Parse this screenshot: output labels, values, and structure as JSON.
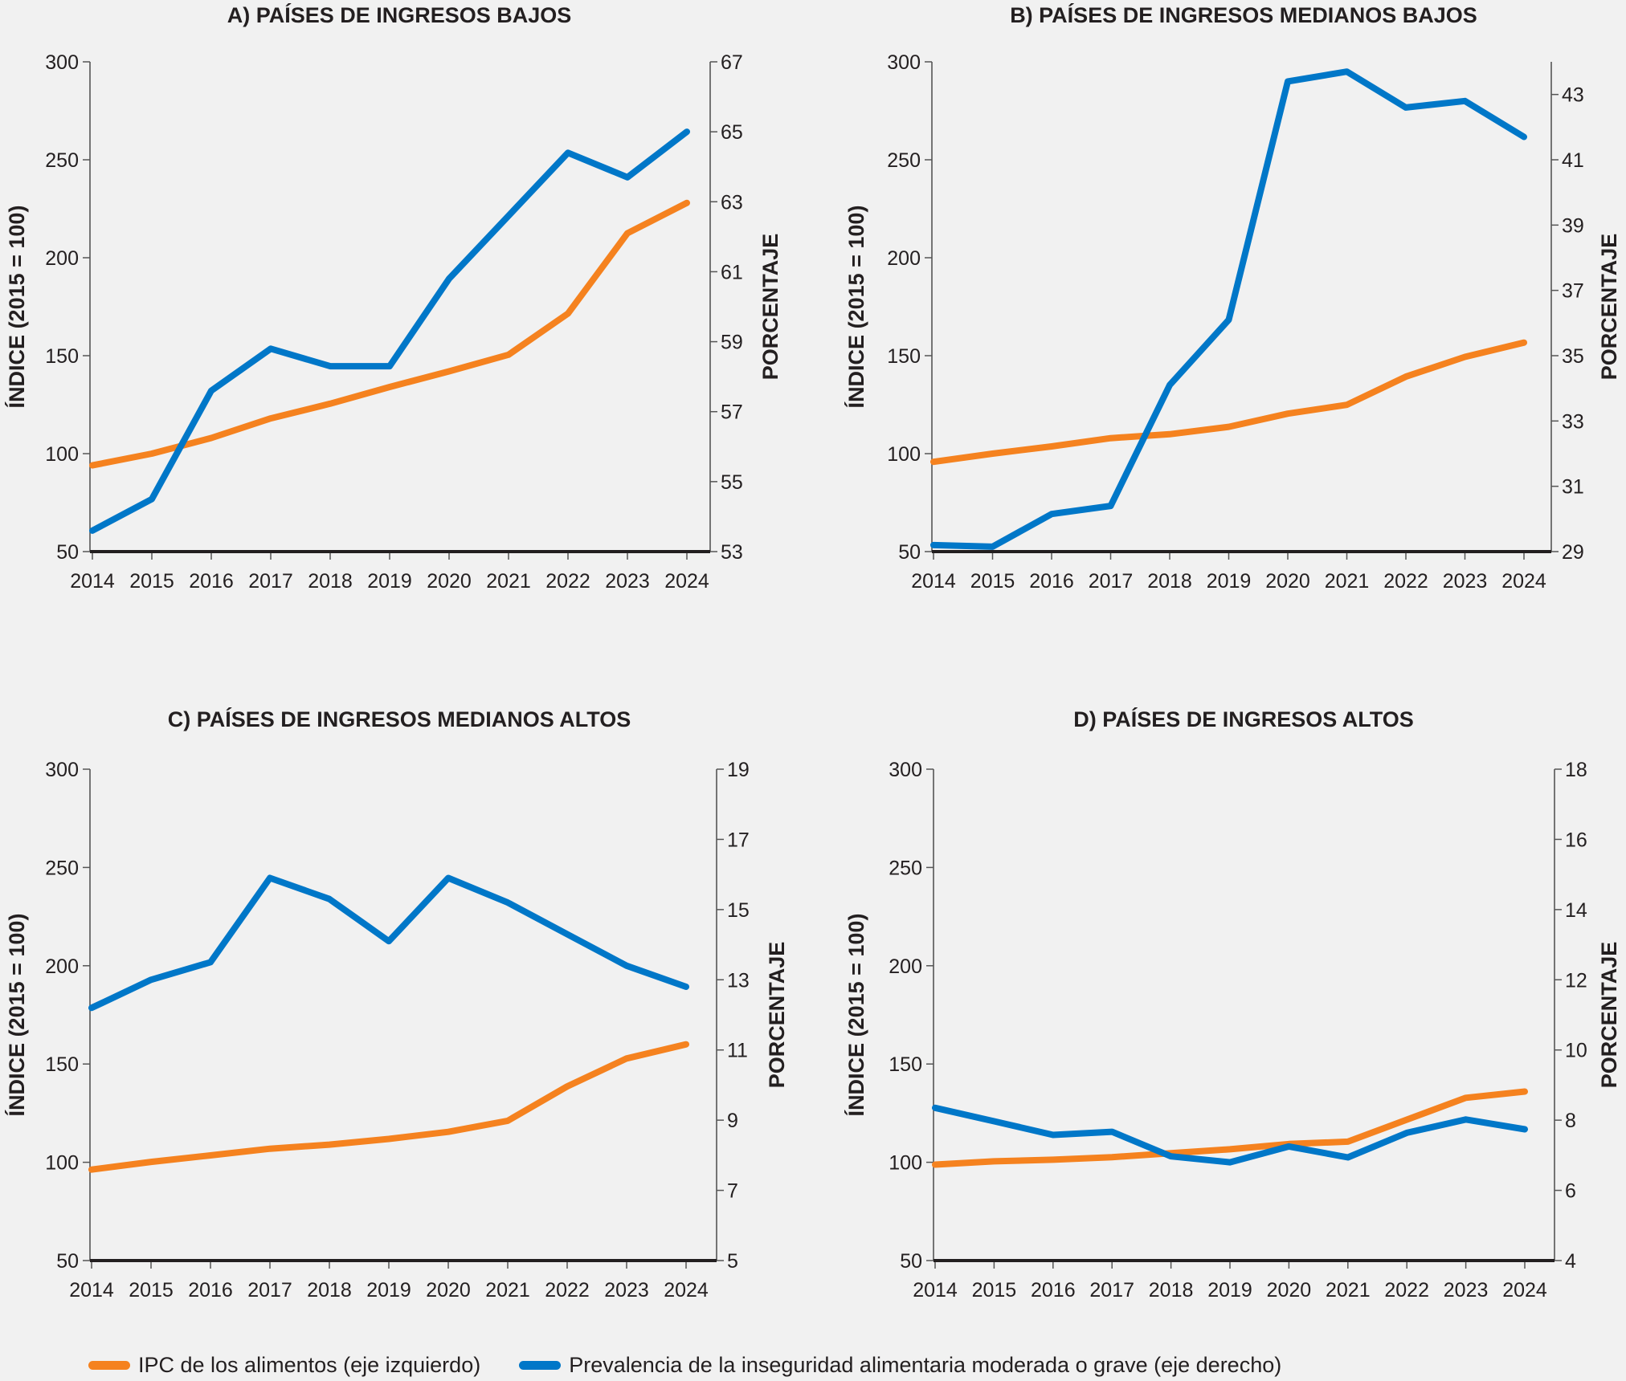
{
  "colors": {
    "ipc": "#F5821F",
    "inseguridad": "#0077C8",
    "axis": "#231F20",
    "background": "#F1F1F1"
  },
  "legend": [
    {
      "key": "ipc",
      "label": "IPC de los alimentos (eje izquierdo)"
    },
    {
      "key": "inseguridad",
      "label": "Prevalencia de la inseguridad alimentaria moderada o grave (eje derecho)"
    }
  ],
  "chart_data": [
    {
      "type": "line",
      "title": "A) PAÍSES DE INGRESOS BAJOS",
      "xlabel": "",
      "ylabel": "ÍNDICE  (2015 = 100)",
      "y2label": "PORCENTAJE",
      "x": [
        2014,
        2015,
        2016,
        2017,
        2018,
        2019,
        2020,
        2021,
        2022,
        2023,
        2024
      ],
      "ylim": [
        50,
        300
      ],
      "yticks": [
        50,
        100,
        150,
        200,
        250,
        300
      ],
      "y2lim": [
        53,
        67
      ],
      "y2ticks": [
        53,
        55,
        57,
        59,
        61,
        63,
        65,
        67
      ],
      "series": [
        {
          "name": "IPC de los alimentos (eje izquierdo)",
          "axis": "left",
          "color_key": "ipc",
          "values": [
            94,
            100,
            108,
            118,
            125.5,
            134,
            142,
            150.5,
            171.5,
            212.5,
            228
          ]
        },
        {
          "name": "Prevalencia de la inseguridad alimentaria moderada o grave (eje derecho)",
          "axis": "right",
          "color_key": "inseguridad",
          "values": [
            53.6,
            54.5,
            57.6,
            58.8,
            58.3,
            58.3,
            60.8,
            62.6,
            64.4,
            63.7,
            65.0
          ]
        }
      ],
      "grid": false
    },
    {
      "type": "line",
      "title": "B) PAÍSES DE INGRESOS MEDIANOS BAJOS",
      "xlabel": "",
      "ylabel": "ÍNDICE  (2015 = 100)",
      "y2label": "PORCENTAJE",
      "x": [
        2014,
        2015,
        2016,
        2017,
        2018,
        2019,
        2020,
        2021,
        2022,
        2023,
        2024
      ],
      "ylim": [
        50,
        300
      ],
      "yticks": [
        50,
        100,
        150,
        200,
        250,
        300
      ],
      "y2lim": [
        29,
        44
      ],
      "y2ticks": [
        29,
        31,
        33,
        35,
        37,
        39,
        41,
        43
      ],
      "series": [
        {
          "name": "IPC de los alimentos (eje izquierdo)",
          "axis": "left",
          "color_key": "ipc",
          "values": [
            95.8,
            100,
            103.7,
            107.9,
            109.9,
            113.7,
            120.4,
            124.9,
            139.3,
            149.4,
            156.7
          ]
        },
        {
          "name": "Prevalencia de la inseguridad alimentaria moderada o grave (eje derecho)",
          "axis": "right",
          "color_key": "inseguridad",
          "values": [
            29.2,
            29.15,
            30.15,
            30.4,
            34.1,
            36.1,
            43.4,
            43.7,
            42.6,
            42.8,
            41.7
          ]
        }
      ],
      "grid": false
    },
    {
      "type": "line",
      "title": "C) PAÍSES DE INGRESOS MEDIANOS ALTOS",
      "xlabel": "",
      "ylabel": "ÍNDICE  (2015 = 100)",
      "y2label": "PORCENTAJE",
      "x": [
        2014,
        2015,
        2016,
        2017,
        2018,
        2019,
        2020,
        2021,
        2022,
        2023,
        2024
      ],
      "ylim": [
        50,
        300
      ],
      "yticks": [
        50,
        100,
        150,
        200,
        250,
        300
      ],
      "y2lim": [
        5,
        19
      ],
      "y2ticks": [
        5,
        7,
        9,
        11,
        13,
        15,
        17,
        19
      ],
      "series": [
        {
          "name": "IPC de los alimentos (eje izquierdo)",
          "axis": "left",
          "color_key": "ipc",
          "values": [
            96.3,
            100.2,
            103.5,
            106.9,
            109,
            111.9,
            115.5,
            121.1,
            138.6,
            152.8,
            160
          ]
        },
        {
          "name": "Prevalencia de la inseguridad alimentaria moderada o grave (eje derecho)",
          "axis": "right",
          "color_key": "inseguridad",
          "values": [
            12.2,
            13.0,
            13.5,
            15.9,
            15.3,
            14.1,
            15.9,
            15.2,
            14.3,
            13.4,
            12.8
          ]
        }
      ],
      "grid": false
    },
    {
      "type": "line",
      "title": "D) PAÍSES DE INGRESOS ALTOS",
      "xlabel": "",
      "ylabel": "ÍNDICE  (2015 = 100)",
      "y2label": "PORCENTAJE",
      "x": [
        2014,
        2015,
        2016,
        2017,
        2018,
        2019,
        2020,
        2021,
        2022,
        2023,
        2024
      ],
      "ylim": [
        50,
        300
      ],
      "yticks": [
        50,
        100,
        150,
        200,
        250,
        300
      ],
      "y2lim": [
        4,
        18
      ],
      "y2ticks": [
        4,
        6,
        8,
        10,
        12,
        14,
        16,
        18
      ],
      "series": [
        {
          "name": "IPC de los alimentos (eje izquierdo)",
          "axis": "left",
          "color_key": "ipc",
          "values": [
            98.8,
            100.5,
            101.3,
            102.6,
            104.6,
            106.6,
            109.3,
            110.5,
            121.7,
            132.8,
            136
          ]
        },
        {
          "name": "Prevalencia de la inseguridad alimentaria moderada o grave (eje derecho)",
          "axis": "right",
          "color_key": "inseguridad",
          "values": [
            8.35,
            7.97,
            7.58,
            7.67,
            6.97,
            6.8,
            7.25,
            6.94,
            7.64,
            8.02,
            7.74
          ]
        }
      ],
      "grid": false
    }
  ]
}
